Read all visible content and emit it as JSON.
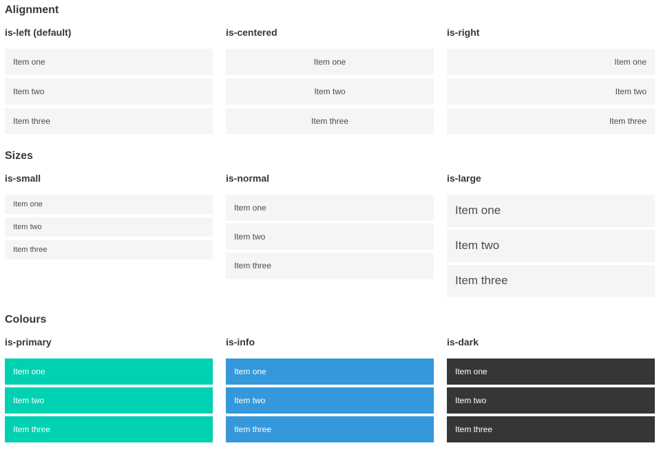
{
  "colors": {
    "page_background": "#ffffff",
    "item_background": "#f5f5f5",
    "item_text": "#4a4a4a",
    "heading_text": "#363636",
    "colored_item_text": "#ffffff",
    "primary": "#00d1b2",
    "info": "#3498db",
    "dark": "#363636"
  },
  "sections": [
    {
      "id": "alignment",
      "title": "Alignment",
      "columns": [
        {
          "id": "is-left",
          "label": "is-left (default)",
          "variant": "left",
          "items": [
            "Item one",
            "Item two",
            "Item three"
          ]
        },
        {
          "id": "is-centered",
          "label": "is-centered",
          "variant": "centered",
          "items": [
            "Item one",
            "Item two",
            "Item three"
          ]
        },
        {
          "id": "is-right",
          "label": "is-right",
          "variant": "right",
          "items": [
            "Item one",
            "Item two",
            "Item three"
          ]
        }
      ]
    },
    {
      "id": "sizes",
      "title": "Sizes",
      "columns": [
        {
          "id": "is-small",
          "label": "is-small",
          "variant": "small",
          "items": [
            "Item one",
            "Item two",
            "Item three"
          ]
        },
        {
          "id": "is-normal",
          "label": "is-normal",
          "variant": "normal",
          "items": [
            "Item one",
            "Item two",
            "Item three"
          ]
        },
        {
          "id": "is-large",
          "label": "is-large",
          "variant": "large",
          "items": [
            "Item one",
            "Item two",
            "Item three"
          ]
        }
      ]
    },
    {
      "id": "colours",
      "title": "Colours",
      "columns": [
        {
          "id": "is-primary",
          "label": "is-primary",
          "variant": "primary",
          "color": "#00d1b2",
          "items": [
            "Item one",
            "Item two",
            "Item three"
          ]
        },
        {
          "id": "is-info",
          "label": "is-info",
          "variant": "info",
          "color": "#3498db",
          "items": [
            "Item one",
            "Item two",
            "Item three"
          ]
        },
        {
          "id": "is-dark",
          "label": "is-dark",
          "variant": "dark",
          "color": "#363636",
          "items": [
            "Item one",
            "Item two",
            "Item three"
          ]
        }
      ]
    }
  ]
}
